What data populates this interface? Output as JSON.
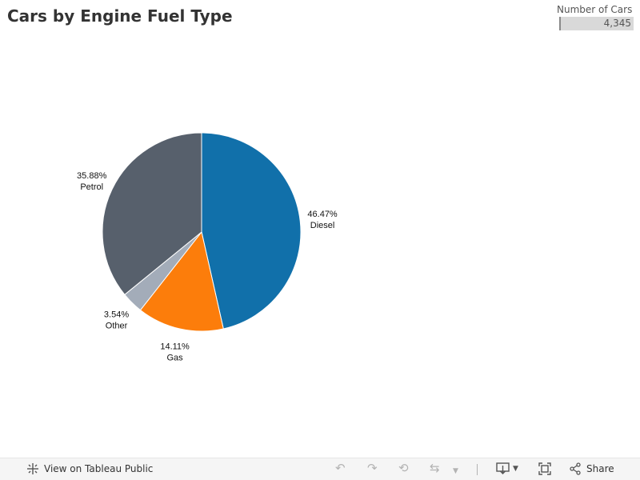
{
  "page": {
    "title": "Cars by Engine Fuel Type"
  },
  "legend": {
    "title": "Number of Cars",
    "value": "4,345"
  },
  "chart_data": {
    "type": "pie",
    "title": "Cars by Engine Fuel Type",
    "categories": [
      "Diesel",
      "Gas",
      "Other",
      "Petrol"
    ],
    "values": [
      46.47,
      14.11,
      3.54,
      35.88
    ],
    "labels": [
      "46.47%",
      "14.11%",
      "3.54%",
      "35.88%"
    ],
    "colors": [
      "#1170aa",
      "#fc7d0b",
      "#a3acb9",
      "#57606c"
    ],
    "start_angle_deg": 0,
    "direction": "clockwise",
    "total": "4,345"
  },
  "toolbar": {
    "view_label": "View on Tableau Public",
    "share_label": "Share",
    "icons": [
      "tableau-icon",
      "undo-icon",
      "redo-icon",
      "revert-icon",
      "refresh-icon",
      "download-icon",
      "fullscreen-icon",
      "share-icon"
    ]
  }
}
